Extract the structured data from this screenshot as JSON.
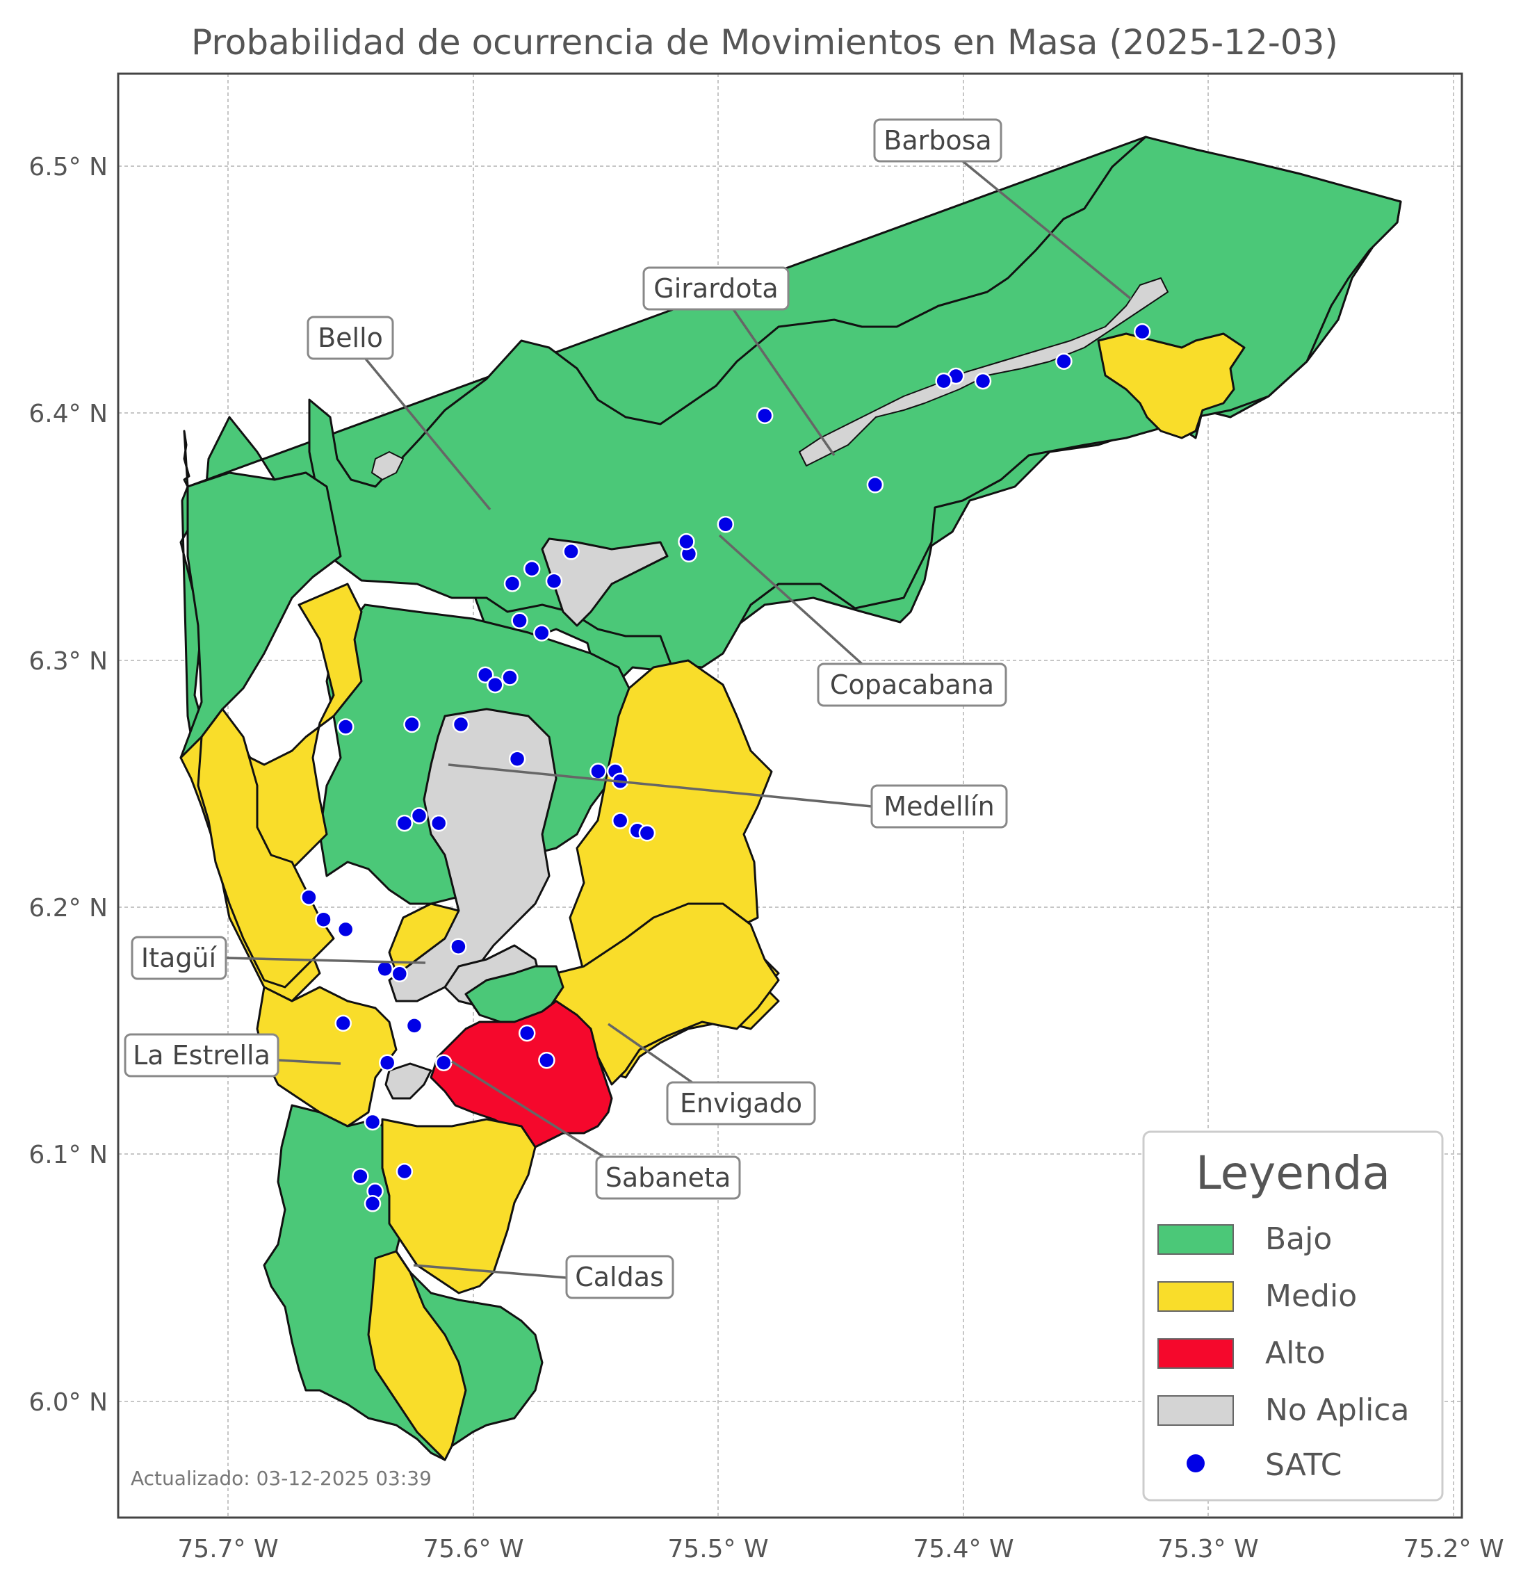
{
  "title": "Probabilidad de ocurrencia de Movimientos en Masa (2025-12-03)",
  "x_ticks": [
    "75.7° W",
    "75.6° W",
    "75.5° W",
    "75.4° W",
    "75.3° W",
    "75.2° W"
  ],
  "y_ticks": [
    "6.5° N",
    "6.4° N",
    "6.3° N",
    "6.2° N",
    "6.1° N",
    "6.0° N"
  ],
  "colors": {
    "bajo": "#4bc878",
    "medio": "#f9dd2a",
    "alto": "#f5082c",
    "no_aplica": "#d4d4d4",
    "satc": "#0000e6"
  },
  "municipalities": [
    {
      "name": "Barbosa",
      "category": "Bajo"
    },
    {
      "name": "Girardota",
      "category": "Bajo"
    },
    {
      "name": "Bello",
      "category": "Bajo"
    },
    {
      "name": "Copacabana",
      "category": "Bajo"
    },
    {
      "name": "Medellín",
      "category": "Medio"
    },
    {
      "name": "Itagüí",
      "category": "Medio"
    },
    {
      "name": "La Estrella",
      "category": "Medio"
    },
    {
      "name": "Envigado",
      "category": "Medio"
    },
    {
      "name": "Sabaneta",
      "category": "Alto"
    },
    {
      "name": "Caldas",
      "category": "Bajo"
    }
  ],
  "legend": {
    "title": "Leyenda",
    "items": [
      {
        "label": "Bajo",
        "icon": "square-swatch"
      },
      {
        "label": "Medio",
        "icon": "square-swatch"
      },
      {
        "label": "Alto",
        "icon": "square-swatch"
      },
      {
        "label": "No Aplica",
        "icon": "square-swatch"
      },
      {
        "label": "SATC",
        "icon": "dot-marker"
      }
    ]
  },
  "satc_stations": [
    {
      "lon": -75.327,
      "lat": 6.433
    },
    {
      "lon": -75.359,
      "lat": 6.421
    },
    {
      "lon": -75.392,
      "lat": 6.413
    },
    {
      "lon": -75.403,
      "lat": 6.415
    },
    {
      "lon": -75.408,
      "lat": 6.413
    },
    {
      "lon": -75.481,
      "lat": 6.399
    },
    {
      "lon": -75.436,
      "lat": 6.371
    },
    {
      "lon": -75.497,
      "lat": 6.355
    },
    {
      "lon": -75.512,
      "lat": 6.343
    },
    {
      "lon": -75.513,
      "lat": 6.348
    },
    {
      "lon": -75.56,
      "lat": 6.344
    },
    {
      "lon": -75.576,
      "lat": 6.337
    },
    {
      "lon": -75.567,
      "lat": 6.332
    },
    {
      "lon": -75.584,
      "lat": 6.331
    },
    {
      "lon": -75.581,
      "lat": 6.316
    },
    {
      "lon": -75.572,
      "lat": 6.311
    },
    {
      "lon": -75.595,
      "lat": 6.294
    },
    {
      "lon": -75.585,
      "lat": 6.293
    },
    {
      "lon": -75.591,
      "lat": 6.29
    },
    {
      "lon": -75.652,
      "lat": 6.273
    },
    {
      "lon": -75.625,
      "lat": 6.274
    },
    {
      "lon": -75.605,
      "lat": 6.274
    },
    {
      "lon": -75.582,
      "lat": 6.26
    },
    {
      "lon": -75.549,
      "lat": 6.255
    },
    {
      "lon": -75.542,
      "lat": 6.255
    },
    {
      "lon": -75.54,
      "lat": 6.251
    },
    {
      "lon": -75.622,
      "lat": 6.237
    },
    {
      "lon": -75.628,
      "lat": 6.234
    },
    {
      "lon": -75.614,
      "lat": 6.234
    },
    {
      "lon": -75.54,
      "lat": 6.235
    },
    {
      "lon": -75.533,
      "lat": 6.231
    },
    {
      "lon": -75.529,
      "lat": 6.23
    },
    {
      "lon": -75.667,
      "lat": 6.204
    },
    {
      "lon": -75.661,
      "lat": 6.195
    },
    {
      "lon": -75.652,
      "lat": 6.191
    },
    {
      "lon": -75.606,
      "lat": 6.184
    },
    {
      "lon": -75.636,
      "lat": 6.175
    },
    {
      "lon": -75.63,
      "lat": 6.173
    },
    {
      "lon": -75.653,
      "lat": 6.153
    },
    {
      "lon": -75.624,
      "lat": 6.152
    },
    {
      "lon": -75.578,
      "lat": 6.149
    },
    {
      "lon": -75.57,
      "lat": 6.138
    },
    {
      "lon": -75.612,
      "lat": 6.137
    },
    {
      "lon": -75.635,
      "lat": 6.137
    },
    {
      "lon": -75.641,
      "lat": 6.113
    },
    {
      "lon": -75.628,
      "lat": 6.093
    },
    {
      "lon": -75.646,
      "lat": 6.091
    },
    {
      "lon": -75.64,
      "lat": 6.085
    },
    {
      "lon": -75.641,
      "lat": 6.08
    }
  ],
  "updated": "Actualizado: 03-12-2025 03:39"
}
